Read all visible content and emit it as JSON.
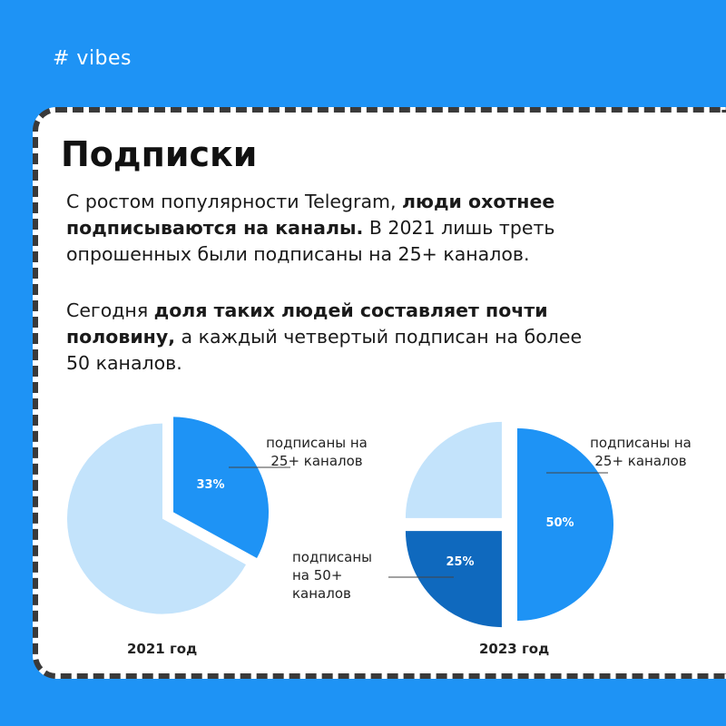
{
  "brand": "# vibes",
  "title": "Подписки",
  "paragraph1": {
    "t1": "С ростом популярности Telegram, ",
    "b1": "люди охотнее подписываются на каналы.",
    "t2": " В 2021 лишь треть опрошенных были подписаны на 25+ каналов."
  },
  "paragraph2": {
    "t1": "Сегодня ",
    "b1": "доля таких людей составляет почти половину,",
    "t2": " а каждый четвертый подписан на более 50 каналов."
  },
  "colors": {
    "background": "#1E93F5",
    "light": "#C3E3FB",
    "medium": "#1E93F5",
    "dark": "#0F69BE"
  },
  "chart_data": [
    {
      "type": "pie",
      "title": "2021 год",
      "slices": [
        {
          "label": "подписаны на 25+ каналов",
          "value": 33,
          "display": "33%",
          "color": "#1E93F5"
        },
        {
          "label": "",
          "value": 67,
          "display": "",
          "color": "#C3E3FB"
        }
      ]
    },
    {
      "type": "pie",
      "title": "2023 год",
      "slices": [
        {
          "label": "подписаны на 25+ каналов",
          "value": 50,
          "display": "50%",
          "color": "#1E93F5"
        },
        {
          "label": "подписаны на 50+ каналов",
          "value": 25,
          "display": "25%",
          "color": "#0F69BE"
        },
        {
          "label": "",
          "value": 25,
          "display": "",
          "color": "#C3E3FB"
        }
      ]
    }
  ]
}
